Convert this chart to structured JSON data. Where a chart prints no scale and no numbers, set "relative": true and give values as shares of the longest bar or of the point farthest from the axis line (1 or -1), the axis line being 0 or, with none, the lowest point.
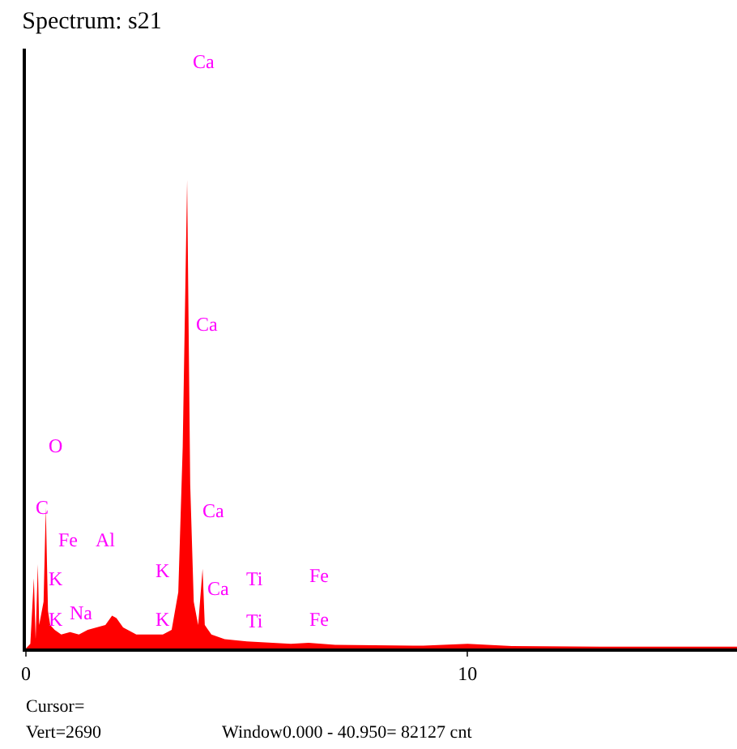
{
  "chart_data": {
    "type": "area",
    "title": "Spectrum: s21",
    "relative": true,
    "xlim": [
      0,
      16.1
    ],
    "xticks": [
      0,
      10
    ],
    "grid": false,
    "x": [
      0,
      0.1,
      0.18,
      0.22,
      0.27,
      0.3,
      0.4,
      0.45,
      0.5,
      0.55,
      0.65,
      0.8,
      1.0,
      1.2,
      1.4,
      1.6,
      1.8,
      1.95,
      2.05,
      2.2,
      2.5,
      2.8,
      3.1,
      3.3,
      3.45,
      3.55,
      3.65,
      3.72,
      3.8,
      3.9,
      4.0,
      4.05,
      4.2,
      4.5,
      5.0,
      6.0,
      6.4,
      7.0,
      9.0,
      10.0,
      11.0,
      13.0,
      15.0,
      16.1
    ],
    "series": [
      {
        "color": "#ff0000",
        "values": [
          0,
          0.01,
          0.15,
          0.02,
          0.18,
          0.05,
          0.1,
          0.3,
          0.08,
          0.05,
          0.04,
          0.03,
          0.035,
          0.03,
          0.04,
          0.045,
          0.05,
          0.07,
          0.065,
          0.045,
          0.03,
          0.03,
          0.03,
          0.04,
          0.12,
          0.43,
          1.0,
          0.35,
          0.1,
          0.05,
          0.17,
          0.05,
          0.03,
          0.02,
          0.015,
          0.01,
          0.012,
          0.008,
          0.006,
          0.01,
          0.005,
          0.004,
          0.004,
          0.004
        ]
      }
    ],
    "annotations": [
      "Ca",
      "Ca",
      "O",
      "C",
      "Fe",
      "Al",
      "K",
      "K",
      "Na",
      "Ca",
      "K",
      "K",
      "Ca",
      "Ti",
      "Ti",
      "Fe",
      "Fe",
      "Cursor=",
      "Vert=2690",
      "Window0.000 - 40.950= 82127 cnt"
    ]
  }
}
